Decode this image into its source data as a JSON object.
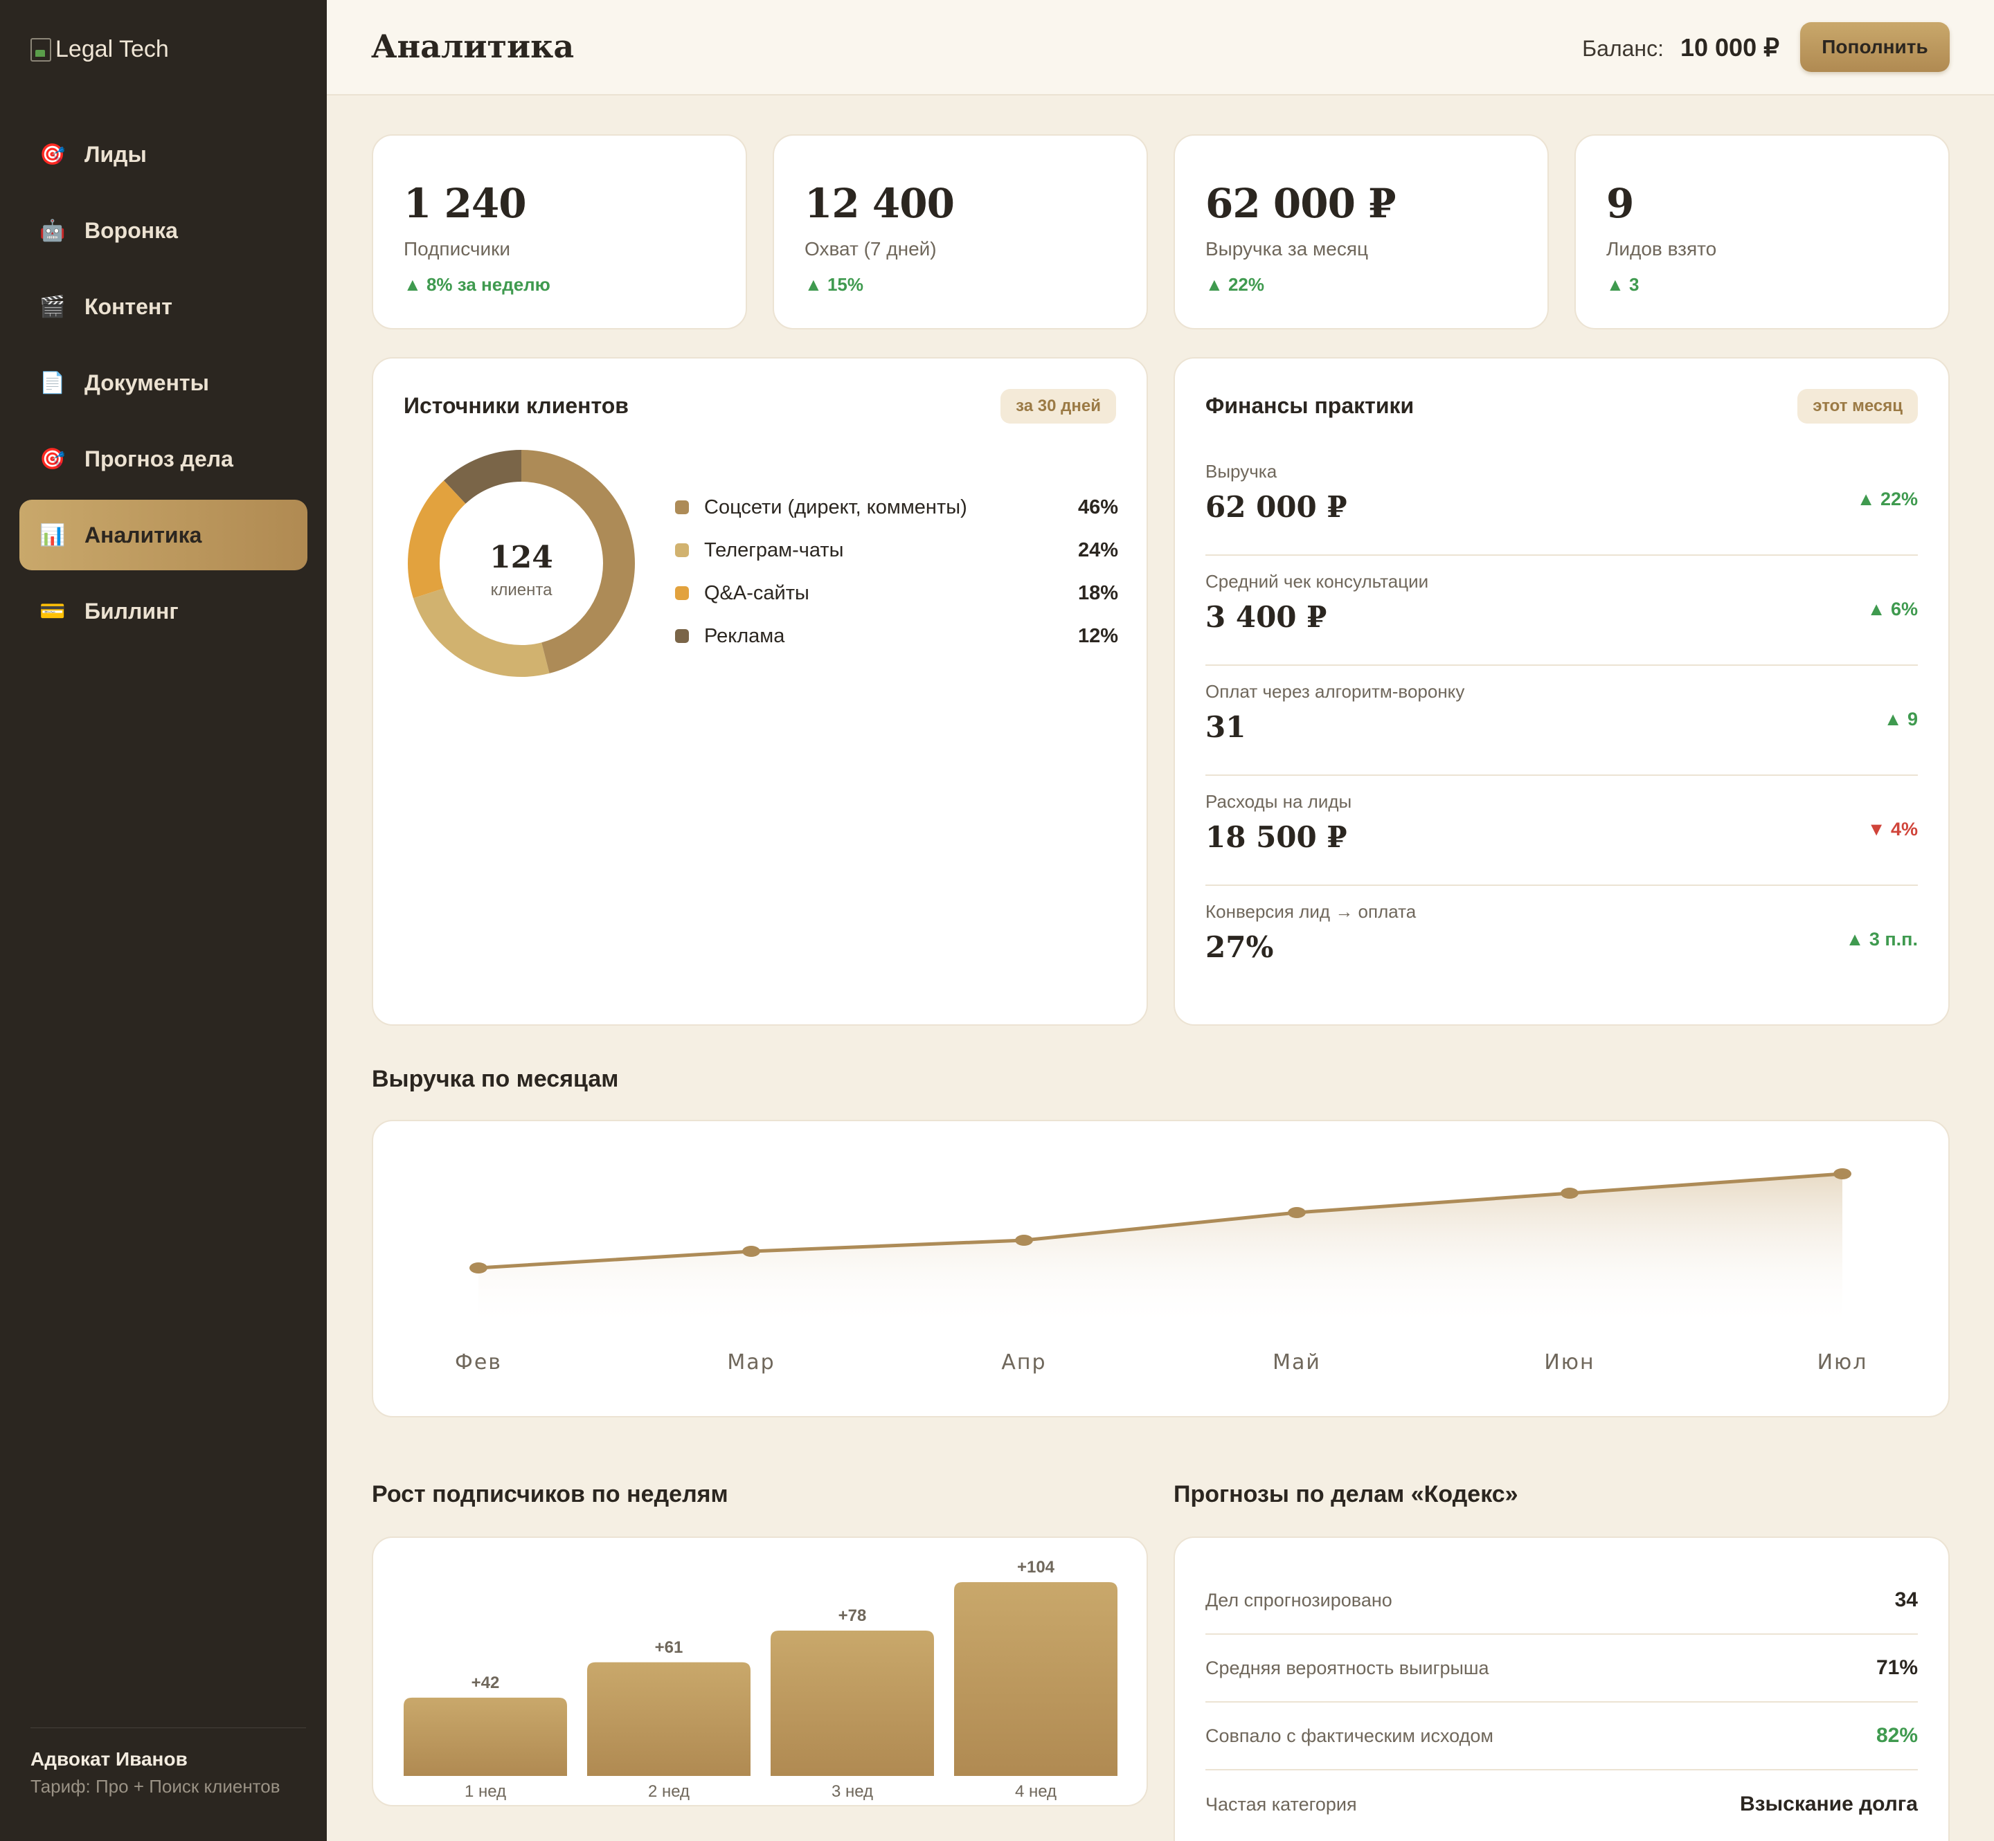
{
  "app": {
    "logo_alt": "Legal Tech"
  },
  "sidebar": {
    "items": [
      {
        "icon": "target-icon",
        "glyph": "🎯",
        "label": "Лиды",
        "active": false
      },
      {
        "icon": "robot-icon",
        "glyph": "🤖",
        "label": "Воронка",
        "active": false
      },
      {
        "icon": "clapper-icon",
        "glyph": "🎬",
        "label": "Контент",
        "active": false
      },
      {
        "icon": "document-icon",
        "glyph": "📄",
        "label": "Документы",
        "active": false
      },
      {
        "icon": "target-icon",
        "glyph": "🎯",
        "label": "Прогноз дела",
        "active": false
      },
      {
        "icon": "bar-chart-icon",
        "glyph": "📊",
        "label": "Аналитика",
        "active": true
      },
      {
        "icon": "credit-card-icon",
        "glyph": "💳",
        "label": "Биллинг",
        "active": false
      }
    ],
    "user": {
      "name": "Адвокат Иванов",
      "plan": "Тариф: Про + Поиск клиентов"
    }
  },
  "header": {
    "title": "Аналитика",
    "balance_label": "Баланс:",
    "balance_value": "10 000 ₽",
    "topup_label": "Пополнить"
  },
  "kpis": [
    {
      "value": "1 240",
      "label": "Подписчики",
      "change": "▲ 8% за неделю"
    },
    {
      "value": "12 400",
      "label": "Охват (7 дней)",
      "change": "▲ 15%"
    },
    {
      "value": "62 000 ₽",
      "label": "Выручка за месяц",
      "change": "▲ 22%"
    },
    {
      "value": "9",
      "label": "Лидов взято",
      "change": "▲ 3"
    }
  ],
  "sources": {
    "title": "Источники клиентов",
    "period": "за 30 дней",
    "total": "124",
    "total_label": "клиента",
    "items": [
      {
        "name": "Соцсети (директ, комменты)",
        "pct_label": "46%",
        "value": 46,
        "color": "#ad8b57"
      },
      {
        "name": "Телеграм-чаты",
        "pct_label": "24%",
        "value": 24,
        "color": "#d1b26f"
      },
      {
        "name": "Q&A-сайты",
        "pct_label": "18%",
        "value": 18,
        "color": "#e2a23e"
      },
      {
        "name": "Реклама",
        "pct_label": "12%",
        "value": 12,
        "color": "#7a6548"
      }
    ]
  },
  "finance": {
    "title": "Финансы практики",
    "period": "этот месяц",
    "rows": [
      {
        "label": "Выручка",
        "value": "62 000 ₽",
        "change": "▲ 22%",
        "dir": "up"
      },
      {
        "label": "Средний чек консультации",
        "value": "3 400 ₽",
        "change": "▲ 6%",
        "dir": "up"
      },
      {
        "label": "Оплат через алгоритм-воронку",
        "value": "31",
        "change": "▲ 9",
        "dir": "up"
      },
      {
        "label": "Расходы на лиды",
        "value": "18 500 ₽",
        "change": "▼ 4%",
        "dir": "down"
      },
      {
        "label": "Конверсия лид → оплата",
        "value": "27%",
        "change": "▲ 3 п.п.",
        "dir": "up"
      }
    ]
  },
  "revenue_title": "Выручка по месяцам",
  "growth_title": "Рост подписчиков по неделям",
  "chart_data": [
    {
      "type": "area",
      "categories": [
        "Фев",
        "Мар",
        "Апр",
        "Май",
        "Июн",
        "Июл"
      ],
      "values": [
        22000,
        28000,
        32000,
        42000,
        49000,
        56000
      ],
      "title": "",
      "xlabel": "",
      "ylabel": "",
      "ylim": [
        0,
        60000
      ],
      "grid": false,
      "line_color": "#ad8b57"
    },
    {
      "type": "bar",
      "categories": [
        "1 нед",
        "2 нед",
        "3 нед",
        "4 нед"
      ],
      "values": [
        42,
        61,
        78,
        104
      ],
      "labels": [
        "+42",
        "+61",
        "+78",
        "+104"
      ],
      "title": "",
      "xlabel": "",
      "ylabel": "",
      "ylim": [
        0,
        104
      ],
      "grid": false
    }
  ],
  "forecast": {
    "title": "Прогнозы по делам «Кодекс»",
    "rows": [
      {
        "label": "Дел спрогнозировано",
        "value": "34",
        "highlight": false
      },
      {
        "label": "Средняя вероятность выигрыша",
        "value": "71%",
        "highlight": false
      },
      {
        "label": "Совпало с фактическим исходом",
        "value": "82%",
        "highlight": true
      },
      {
        "label": "Частая категория",
        "value": "Взыскание долга",
        "highlight": false
      }
    ]
  },
  "colors": {
    "accent": "#b08a52",
    "sidebar_bg": "#2b2620",
    "background": "#f5efe3",
    "positive": "#3f9a4f",
    "negative": "#d0443a"
  }
}
